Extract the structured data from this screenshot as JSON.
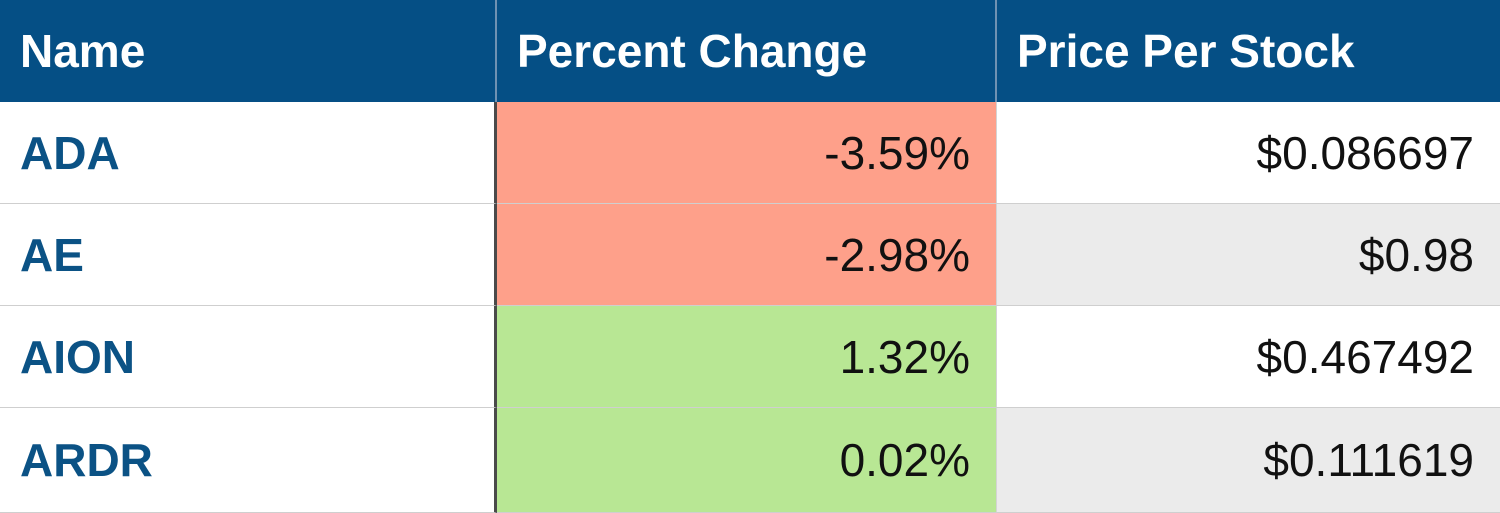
{
  "table": {
    "headers": [
      "Name",
      "Percent Change",
      "Price Per Stock"
    ],
    "rows": [
      {
        "name": "ADA",
        "percent_change": "-3.59%",
        "price": "$0.086697",
        "pct_color": "#fea08a",
        "price_bg": "#ffffff"
      },
      {
        "name": "AE",
        "percent_change": "-2.98%",
        "price": "$0.98",
        "pct_color": "#fea08a",
        "price_bg": "#ebebeb"
      },
      {
        "name": "AION",
        "percent_change": "1.32%",
        "price": "$0.467492",
        "pct_color": "#b8e794",
        "price_bg": "#ffffff"
      },
      {
        "name": "ARDR",
        "percent_change": "0.02%",
        "price": "$0.111619",
        "pct_color": "#b8e794",
        "price_bg": "#ebebeb"
      }
    ]
  },
  "colors": {
    "header_bg": "#054f85",
    "header_text": "#ffffff",
    "name_text": "#0b5285",
    "negative": "#fea08a",
    "positive": "#b8e794",
    "alt_row": "#ebebeb"
  }
}
